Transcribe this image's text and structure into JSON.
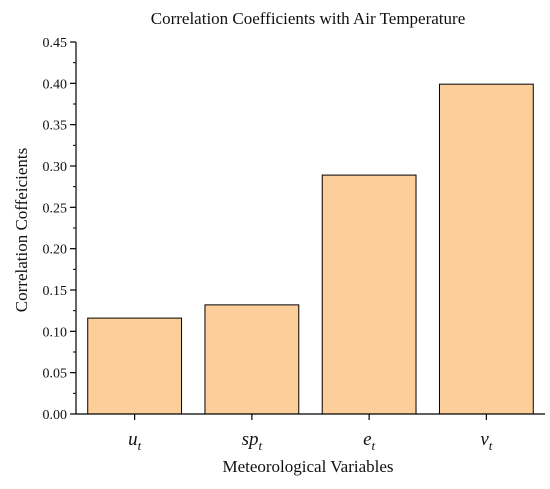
{
  "chart_data": {
    "type": "bar",
    "title": "Correlation Coefficients with Air Temperature",
    "xlabel": "Meteorological Variables",
    "ylabel": "Correlation Coffeicients",
    "categories": [
      {
        "base": "u",
        "sub": "t"
      },
      {
        "base": "sp",
        "sub": "t"
      },
      {
        "base": "e",
        "sub": "t"
      },
      {
        "base": "v",
        "sub": "t"
      }
    ],
    "values": [
      0.116,
      0.132,
      0.289,
      0.399
    ],
    "ylim": [
      0,
      0.45
    ],
    "yticks": [
      "0.00",
      "0.05",
      "0.10",
      "0.15",
      "0.20",
      "0.25",
      "0.30",
      "0.35",
      "0.40",
      "0.45"
    ],
    "grid": false,
    "legend": "none",
    "bar_color": "#FCCE9A",
    "edge_color": "#000000"
  }
}
